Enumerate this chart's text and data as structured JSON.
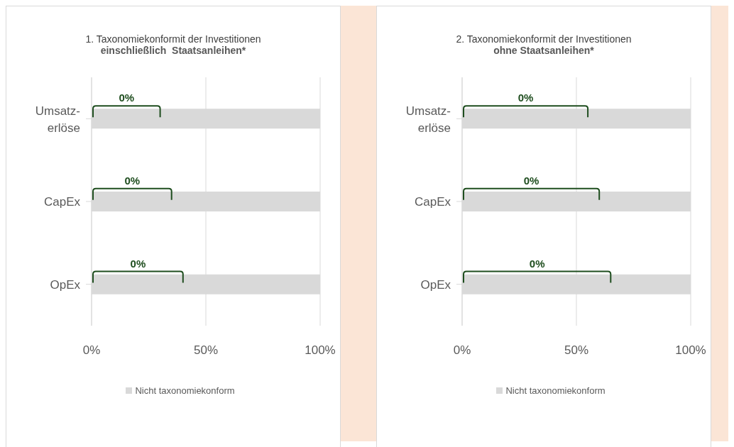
{
  "chart_data": [
    {
      "type": "bar",
      "orientation": "horizontal",
      "title": "1. Taxonomiekonformit der Investitionen",
      "subtitle": "einschließlich  Staatsanleihen*",
      "categories": [
        "Umsatz-\nerlöse",
        "CapEx",
        "OpEx"
      ],
      "series": [
        {
          "name": "Nicht taxonomiekonform",
          "color": "#d9d9d9",
          "values": [
            100,
            100,
            100
          ]
        }
      ],
      "xlim": [
        0,
        100
      ],
      "xticks": [
        {
          "value": 0,
          "label": "0%"
        },
        {
          "value": 50,
          "label": "50%"
        },
        {
          "value": 100,
          "label": "100%"
        }
      ],
      "grid": "x",
      "legend": "bottom",
      "annotations": [
        "0%",
        "0%",
        "0%"
      ]
    },
    {
      "type": "bar",
      "orientation": "horizontal",
      "title": "2. Taxonomiekonformit der Investitionen",
      "subtitle": "ohne Staatsanleihen*",
      "categories": [
        "Umsatz-\nerlöse",
        "CapEx",
        "OpEx"
      ],
      "series": [
        {
          "name": "Nicht taxonomiekonform",
          "color": "#d9d9d9",
          "values": [
            100,
            100,
            100
          ]
        }
      ],
      "xlim": [
        0,
        100
      ],
      "xticks": [
        {
          "value": 0,
          "label": "0%"
        },
        {
          "value": 50,
          "label": "50%"
        },
        {
          "value": 100,
          "label": "100%"
        }
      ],
      "grid": "x",
      "legend": "bottom",
      "annotations": [
        "0%",
        "0%",
        "0%"
      ]
    }
  ]
}
